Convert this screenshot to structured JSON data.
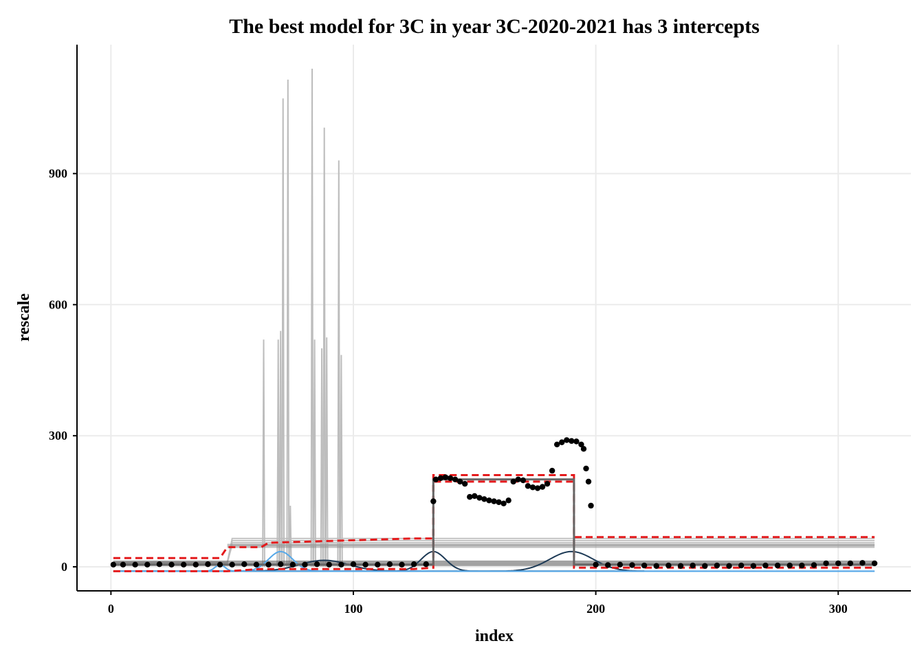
{
  "chart_data": {
    "type": "line",
    "title": "The best model for 3C in year 3C-2020-2021 has 3 intercepts",
    "xlabel": "index",
    "ylabel": "rescale",
    "xlim": [
      -14,
      330
    ],
    "ylim": [
      -55,
      1195
    ],
    "x_ticks": [
      0,
      100,
      200,
      300
    ],
    "y_ticks": [
      0,
      300,
      600,
      900
    ],
    "x_tick_labels": [
      "0",
      "100",
      "200",
      "300"
    ],
    "y_tick_labels": [
      "0",
      "300",
      "600",
      "900"
    ],
    "grid": true,
    "legend": "none",
    "colors": {
      "observed": "#000000",
      "candidates": "#bdbdbd",
      "model_step": "#666666",
      "bound": "#e41a1c",
      "smooth_dark": "#1d3a56",
      "smooth_light": "#56a8e8"
    },
    "observed_points": [
      [
        1,
        5
      ],
      [
        5,
        5
      ],
      [
        10,
        5
      ],
      [
        15,
        5
      ],
      [
        20,
        6
      ],
      [
        25,
        5
      ],
      [
        30,
        5
      ],
      [
        35,
        5
      ],
      [
        40,
        6
      ],
      [
        45,
        5
      ],
      [
        50,
        5
      ],
      [
        55,
        6
      ],
      [
        60,
        5
      ],
      [
        65,
        5
      ],
      [
        70,
        6
      ],
      [
        75,
        5
      ],
      [
        80,
        5
      ],
      [
        85,
        6
      ],
      [
        90,
        5
      ],
      [
        95,
        5
      ],
      [
        100,
        6
      ],
      [
        105,
        5
      ],
      [
        110,
        5
      ],
      [
        115,
        6
      ],
      [
        120,
        5
      ],
      [
        125,
        6
      ],
      [
        130,
        6
      ],
      [
        133,
        150
      ],
      [
        134,
        200
      ],
      [
        136,
        203
      ],
      [
        138,
        205
      ],
      [
        140,
        203
      ],
      [
        142,
        200
      ],
      [
        144,
        195
      ],
      [
        146,
        190
      ],
      [
        148,
        160
      ],
      [
        150,
        162
      ],
      [
        152,
        158
      ],
      [
        154,
        155
      ],
      [
        156,
        152
      ],
      [
        158,
        150
      ],
      [
        160,
        148
      ],
      [
        162,
        145
      ],
      [
        164,
        152
      ],
      [
        166,
        195
      ],
      [
        168,
        200
      ],
      [
        170,
        198
      ],
      [
        172,
        185
      ],
      [
        174,
        182
      ],
      [
        176,
        180
      ],
      [
        178,
        183
      ],
      [
        180,
        190
      ],
      [
        182,
        220
      ],
      [
        184,
        280
      ],
      [
        186,
        285
      ],
      [
        188,
        290
      ],
      [
        190,
        288
      ],
      [
        192,
        287
      ],
      [
        194,
        280
      ],
      [
        195,
        270
      ],
      [
        196,
        225
      ],
      [
        197,
        195
      ],
      [
        198,
        140
      ],
      [
        200,
        5
      ],
      [
        205,
        4
      ],
      [
        210,
        5
      ],
      [
        215,
        4
      ],
      [
        220,
        3
      ],
      [
        225,
        2
      ],
      [
        230,
        3
      ],
      [
        235,
        2
      ],
      [
        240,
        3
      ],
      [
        245,
        2
      ],
      [
        250,
        3
      ],
      [
        255,
        2
      ],
      [
        260,
        3
      ],
      [
        265,
        2
      ],
      [
        270,
        3
      ],
      [
        275,
        3
      ],
      [
        280,
        3
      ],
      [
        285,
        3
      ],
      [
        290,
        4
      ],
      [
        295,
        8
      ],
      [
        300,
        8
      ],
      [
        305,
        8
      ],
      [
        310,
        9
      ],
      [
        315,
        8
      ]
    ],
    "model_step": [
      [
        0,
        5
      ],
      [
        133,
        5
      ],
      [
        133,
        200
      ],
      [
        191,
        200
      ],
      [
        191,
        5
      ],
      [
        315,
        5
      ]
    ],
    "upper_bound": [
      [
        1,
        20
      ],
      [
        45,
        20
      ],
      [
        48,
        45
      ],
      [
        62,
        45
      ],
      [
        65,
        55
      ],
      [
        125,
        65
      ],
      [
        133,
        65
      ],
      [
        133,
        210
      ],
      [
        191,
        210
      ],
      [
        191,
        68
      ],
      [
        315,
        68
      ]
    ],
    "lower_bound": [
      [
        1,
        -10
      ],
      [
        48,
        -10
      ],
      [
        62,
        -5
      ],
      [
        125,
        -5
      ],
      [
        133,
        -2
      ],
      [
        133,
        195
      ],
      [
        191,
        195
      ],
      [
        191,
        -2
      ],
      [
        315,
        -2
      ]
    ],
    "candidate_spikes": [
      [
        63,
        520
      ],
      [
        69,
        520
      ],
      [
        70,
        540
      ],
      [
        71,
        1072
      ],
      [
        73,
        1115
      ],
      [
        74,
        140
      ],
      [
        83,
        1140
      ],
      [
        84,
        520
      ],
      [
        87,
        500
      ],
      [
        88,
        1005
      ],
      [
        89,
        525
      ],
      [
        94,
        930
      ],
      [
        95,
        485
      ]
    ],
    "candidate_levels": [
      50,
      55,
      60,
      65
    ],
    "smooth_series": [
      {
        "center": 88,
        "amplitude": 25,
        "width": 10
      },
      {
        "center": 133,
        "amplitude": 45,
        "width": 5
      },
      {
        "center": 190,
        "amplitude": 45,
        "width": 9
      },
      {
        "center": 70,
        "amplitude": 45,
        "width": 5
      },
      {
        "center": 45,
        "amplitude": 15,
        "width": 2
      }
    ]
  }
}
